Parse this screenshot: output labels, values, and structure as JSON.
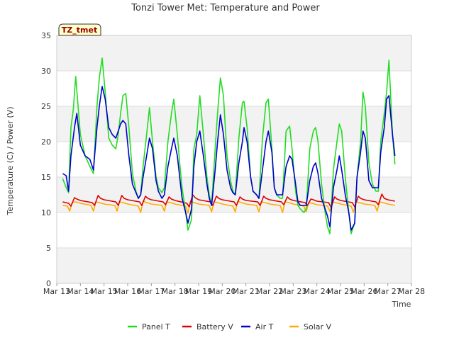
{
  "chart_data": {
    "type": "line",
    "title": "Tonzi Tower Met: Temperature and Power",
    "xlabel": "Time",
    "ylabel": "Temperature (C) / Power (V)",
    "badge": "TZ_tmet",
    "ylim": [
      0,
      35
    ],
    "yticks": [
      0,
      5,
      10,
      15,
      20,
      25,
      30,
      35
    ],
    "xlim": [
      13,
      28
    ],
    "xticks": [
      {
        "v": 13,
        "label": "Mar 13"
      },
      {
        "v": 14,
        "label": "Mar 14"
      },
      {
        "v": 15,
        "label": "Mar 15"
      },
      {
        "v": 16,
        "label": "Mar 16"
      },
      {
        "v": 17,
        "label": "Mar 17"
      },
      {
        "v": 18,
        "label": "Mar 18"
      },
      {
        "v": 19,
        "label": "Mar 19"
      },
      {
        "v": 20,
        "label": "Mar 20"
      },
      {
        "v": 21,
        "label": "Mar 21"
      },
      {
        "v": 22,
        "label": "Mar 22"
      },
      {
        "v": 23,
        "label": "Mar 23"
      },
      {
        "v": 24,
        "label": "Mar 24"
      },
      {
        "v": 25,
        "label": "Mar 25"
      },
      {
        "v": 26,
        "label": "Mar 26"
      },
      {
        "v": 27,
        "label": "Mar 27"
      },
      {
        "v": 28,
        "label": "Mar 28"
      }
    ],
    "grid": true,
    "legend_position": "bottom",
    "series": [
      {
        "name": "Panel T",
        "color": "#22dd22",
        "x": [
          13.25,
          13.4,
          13.5,
          13.6,
          13.7,
          13.8,
          14.0,
          14.2,
          14.4,
          14.55,
          14.7,
          14.8,
          14.92,
          15.05,
          15.2,
          15.35,
          15.5,
          15.6,
          15.7,
          15.8,
          15.92,
          16.05,
          16.2,
          16.35,
          16.45,
          16.55,
          16.65,
          16.8,
          16.92,
          17.05,
          17.2,
          17.3,
          17.45,
          17.55,
          17.7,
          17.85,
          17.95,
          18.1,
          18.2,
          18.3,
          18.45,
          18.55,
          18.7,
          18.8,
          18.92,
          19.05,
          19.2,
          19.35,
          19.45,
          19.55,
          19.7,
          19.8,
          19.92,
          20.05,
          20.2,
          20.35,
          20.45,
          20.55,
          20.7,
          20.85,
          20.92,
          21.05,
          21.2,
          21.3,
          21.45,
          21.55,
          21.7,
          21.85,
          21.95,
          22.1,
          22.2,
          22.3,
          22.45,
          22.55,
          22.7,
          22.85,
          22.95,
          23.1,
          23.2,
          23.3,
          23.45,
          23.55,
          23.7,
          23.85,
          23.95,
          24.05,
          24.2,
          24.35,
          24.45,
          24.55,
          24.7,
          24.85,
          24.95,
          25.05,
          25.2,
          25.35,
          25.45,
          25.6,
          25.7,
          25.85,
          25.95,
          26.05,
          26.2,
          26.35,
          26.5,
          26.6,
          26.7,
          26.85,
          26.95,
          27.05,
          27.2,
          27.3
        ],
        "values": [
          14.8,
          13.5,
          12.8,
          22,
          24.5,
          29.2,
          21,
          18,
          16.5,
          15.5,
          25,
          29,
          31.8,
          27,
          20.5,
          19.5,
          19,
          21,
          24,
          26.5,
          26.8,
          22,
          15.5,
          13,
          12,
          12.5,
          16.5,
          21,
          24.8,
          20,
          15,
          13.5,
          12.8,
          13.5,
          20,
          24,
          26,
          21,
          17,
          13.5,
          10,
          7.5,
          9,
          19,
          21,
          26.5,
          21,
          15,
          12.5,
          11,
          19,
          24,
          29,
          26.5,
          18,
          14.5,
          13,
          12.5,
          20.5,
          25.5,
          25.7,
          22,
          15,
          13,
          12.5,
          12,
          20.5,
          25.5,
          26,
          19,
          13.5,
          12.5,
          12,
          12,
          21.5,
          22.2,
          19,
          13,
          11,
          10.5,
          10,
          10.5,
          19,
          21.5,
          22,
          20,
          14,
          10,
          8,
          7,
          16,
          20,
          22.5,
          21.5,
          15,
          10,
          7,
          8.5,
          15,
          20,
          27,
          25,
          17,
          14,
          13,
          13,
          20,
          24,
          27,
          31.5,
          21,
          16.8
        ]
      },
      {
        "name": "Battery V",
        "color": "#dd0000",
        "x": [
          13.25,
          13.5,
          13.6,
          13.75,
          13.85,
          14.0,
          14.5,
          14.6,
          14.75,
          14.85,
          15.0,
          15.5,
          15.6,
          15.75,
          15.85,
          16.0,
          16.5,
          16.6,
          16.75,
          16.85,
          17.0,
          17.5,
          17.6,
          17.75,
          17.85,
          18.0,
          18.5,
          18.6,
          18.75,
          18.85,
          19.0,
          19.5,
          19.6,
          19.75,
          19.85,
          20.0,
          20.5,
          20.6,
          20.75,
          20.85,
          21.0,
          21.5,
          21.6,
          21.75,
          21.85,
          22.0,
          22.5,
          22.6,
          22.75,
          22.85,
          23.0,
          23.5,
          23.6,
          23.75,
          23.85,
          24.0,
          24.5,
          24.6,
          24.75,
          24.85,
          25.0,
          25.5,
          25.6,
          25.75,
          25.85,
          26.0,
          26.5,
          26.6,
          26.75,
          26.85,
          27.0,
          27.3
        ],
        "values": [
          11.5,
          11.3,
          10.9,
          12.1,
          11.9,
          11.7,
          11.4,
          11.0,
          12.4,
          12.0,
          11.8,
          11.5,
          11.0,
          12.4,
          12.0,
          11.8,
          11.5,
          11.0,
          12.3,
          12.0,
          11.8,
          11.5,
          11.1,
          12.2,
          11.9,
          11.7,
          11.3,
          10.8,
          12.5,
          12.1,
          11.8,
          11.5,
          11.0,
          12.3,
          12.0,
          11.8,
          11.5,
          11.0,
          12.2,
          11.9,
          11.7,
          11.5,
          11.0,
          12.3,
          12.0,
          11.8,
          11.5,
          11.1,
          12.2,
          11.9,
          11.7,
          11.4,
          11.0,
          11.9,
          11.8,
          11.6,
          11.4,
          10.7,
          12.2,
          11.9,
          11.7,
          11.4,
          10.8,
          12.3,
          12.0,
          11.8,
          11.5,
          11.1,
          12.6,
          12.0,
          11.8,
          11.6
        ]
      },
      {
        "name": "Air T",
        "color": "#0000cc",
        "x": [
          13.25,
          13.4,
          13.5,
          13.6,
          13.75,
          13.85,
          14.0,
          14.2,
          14.4,
          14.55,
          14.7,
          14.8,
          14.92,
          15.05,
          15.2,
          15.35,
          15.5,
          15.6,
          15.7,
          15.8,
          15.92,
          16.05,
          16.2,
          16.35,
          16.45,
          16.55,
          16.65,
          16.8,
          16.92,
          17.05,
          17.2,
          17.3,
          17.45,
          17.55,
          17.7,
          17.85,
          17.95,
          18.1,
          18.2,
          18.3,
          18.45,
          18.55,
          18.7,
          18.8,
          18.92,
          19.05,
          19.2,
          19.35,
          19.45,
          19.55,
          19.7,
          19.8,
          19.92,
          20.05,
          20.2,
          20.35,
          20.45,
          20.55,
          20.7,
          20.85,
          20.92,
          21.05,
          21.2,
          21.3,
          21.45,
          21.55,
          21.7,
          21.85,
          21.95,
          22.1,
          22.2,
          22.3,
          22.45,
          22.55,
          22.7,
          22.85,
          22.95,
          23.1,
          23.2,
          23.3,
          23.45,
          23.55,
          23.7,
          23.85,
          23.95,
          24.05,
          24.2,
          24.35,
          24.45,
          24.55,
          24.7,
          24.85,
          24.95,
          25.05,
          25.2,
          25.35,
          25.45,
          25.6,
          25.7,
          25.85,
          25.95,
          26.05,
          26.2,
          26.35,
          26.5,
          26.6,
          26.7,
          26.85,
          26.95,
          27.05,
          27.2,
          27.3
        ],
        "values": [
          15.5,
          15.2,
          13,
          18,
          22,
          24,
          19.5,
          18,
          17.5,
          16,
          22,
          25,
          27.8,
          26,
          22,
          21,
          20.5,
          21.5,
          22.5,
          23,
          22.5,
          18,
          14,
          12.8,
          12,
          12.5,
          15,
          18,
          20.5,
          19,
          14.5,
          13,
          12,
          12.5,
          16.5,
          19,
          20.5,
          18,
          15,
          12,
          10,
          8.5,
          10.5,
          16.5,
          20,
          21.5,
          18,
          14,
          12,
          11,
          16,
          20,
          23.8,
          21,
          16,
          13.5,
          12.8,
          12.5,
          17,
          20,
          22,
          20,
          15,
          13,
          12.5,
          12,
          16,
          20,
          21.5,
          18.5,
          13.5,
          12.5,
          12.5,
          12.5,
          16.5,
          18,
          17.5,
          14,
          11.5,
          11,
          11,
          11,
          14.5,
          16.5,
          17,
          15.5,
          12,
          10.5,
          9.5,
          8,
          13.5,
          16,
          18,
          16,
          12.5,
          10,
          7.5,
          8.5,
          15,
          18.5,
          21.5,
          20.5,
          14.5,
          13.5,
          13.5,
          13.5,
          18.5,
          22,
          26,
          26.5,
          21,
          18
        ]
      },
      {
        "name": "Solar V",
        "color": "#ffaa00",
        "x": [
          13.25,
          13.45,
          13.55,
          13.65,
          13.8,
          14.0,
          14.45,
          14.55,
          14.65,
          14.8,
          15.0,
          15.45,
          15.55,
          15.65,
          15.8,
          16.0,
          16.45,
          16.55,
          16.65,
          16.8,
          17.0,
          17.45,
          17.55,
          17.65,
          17.8,
          18.0,
          18.45,
          18.55,
          18.65,
          18.8,
          19.0,
          19.45,
          19.55,
          19.65,
          19.8,
          20.0,
          20.45,
          20.55,
          20.65,
          20.8,
          21.0,
          21.45,
          21.55,
          21.65,
          21.8,
          22.0,
          22.45,
          22.55,
          22.65,
          22.8,
          23.0,
          23.45,
          23.55,
          23.65,
          23.8,
          24.0,
          24.45,
          24.55,
          24.65,
          24.8,
          25.0,
          25.45,
          25.55,
          25.65,
          25.8,
          26.0,
          26.45,
          26.55,
          26.65,
          26.8,
          27.0,
          27.3
        ],
        "values": [
          11.0,
          10.9,
          10.2,
          11.4,
          11.5,
          11.3,
          11.0,
          10.2,
          11.5,
          11.4,
          11.2,
          11.0,
          10.2,
          11.5,
          11.4,
          11.2,
          10.9,
          10.0,
          11.6,
          11.4,
          11.2,
          11.0,
          10.2,
          11.5,
          11.4,
          11.2,
          10.9,
          9.9,
          11.6,
          11.4,
          11.2,
          11.0,
          10.1,
          11.5,
          11.4,
          11.2,
          10.9,
          10.1,
          11.6,
          11.4,
          11.2,
          11.0,
          10.1,
          11.5,
          11.4,
          11.2,
          11.0,
          10.0,
          11.5,
          11.4,
          11.2,
          10.9,
          10.1,
          11.4,
          11.3,
          11.1,
          10.9,
          10.2,
          11.5,
          11.4,
          11.2,
          10.9,
          10.0,
          11.5,
          11.4,
          11.2,
          11.0,
          10.2,
          11.5,
          11.4,
          11.2,
          11.0
        ]
      }
    ]
  }
}
